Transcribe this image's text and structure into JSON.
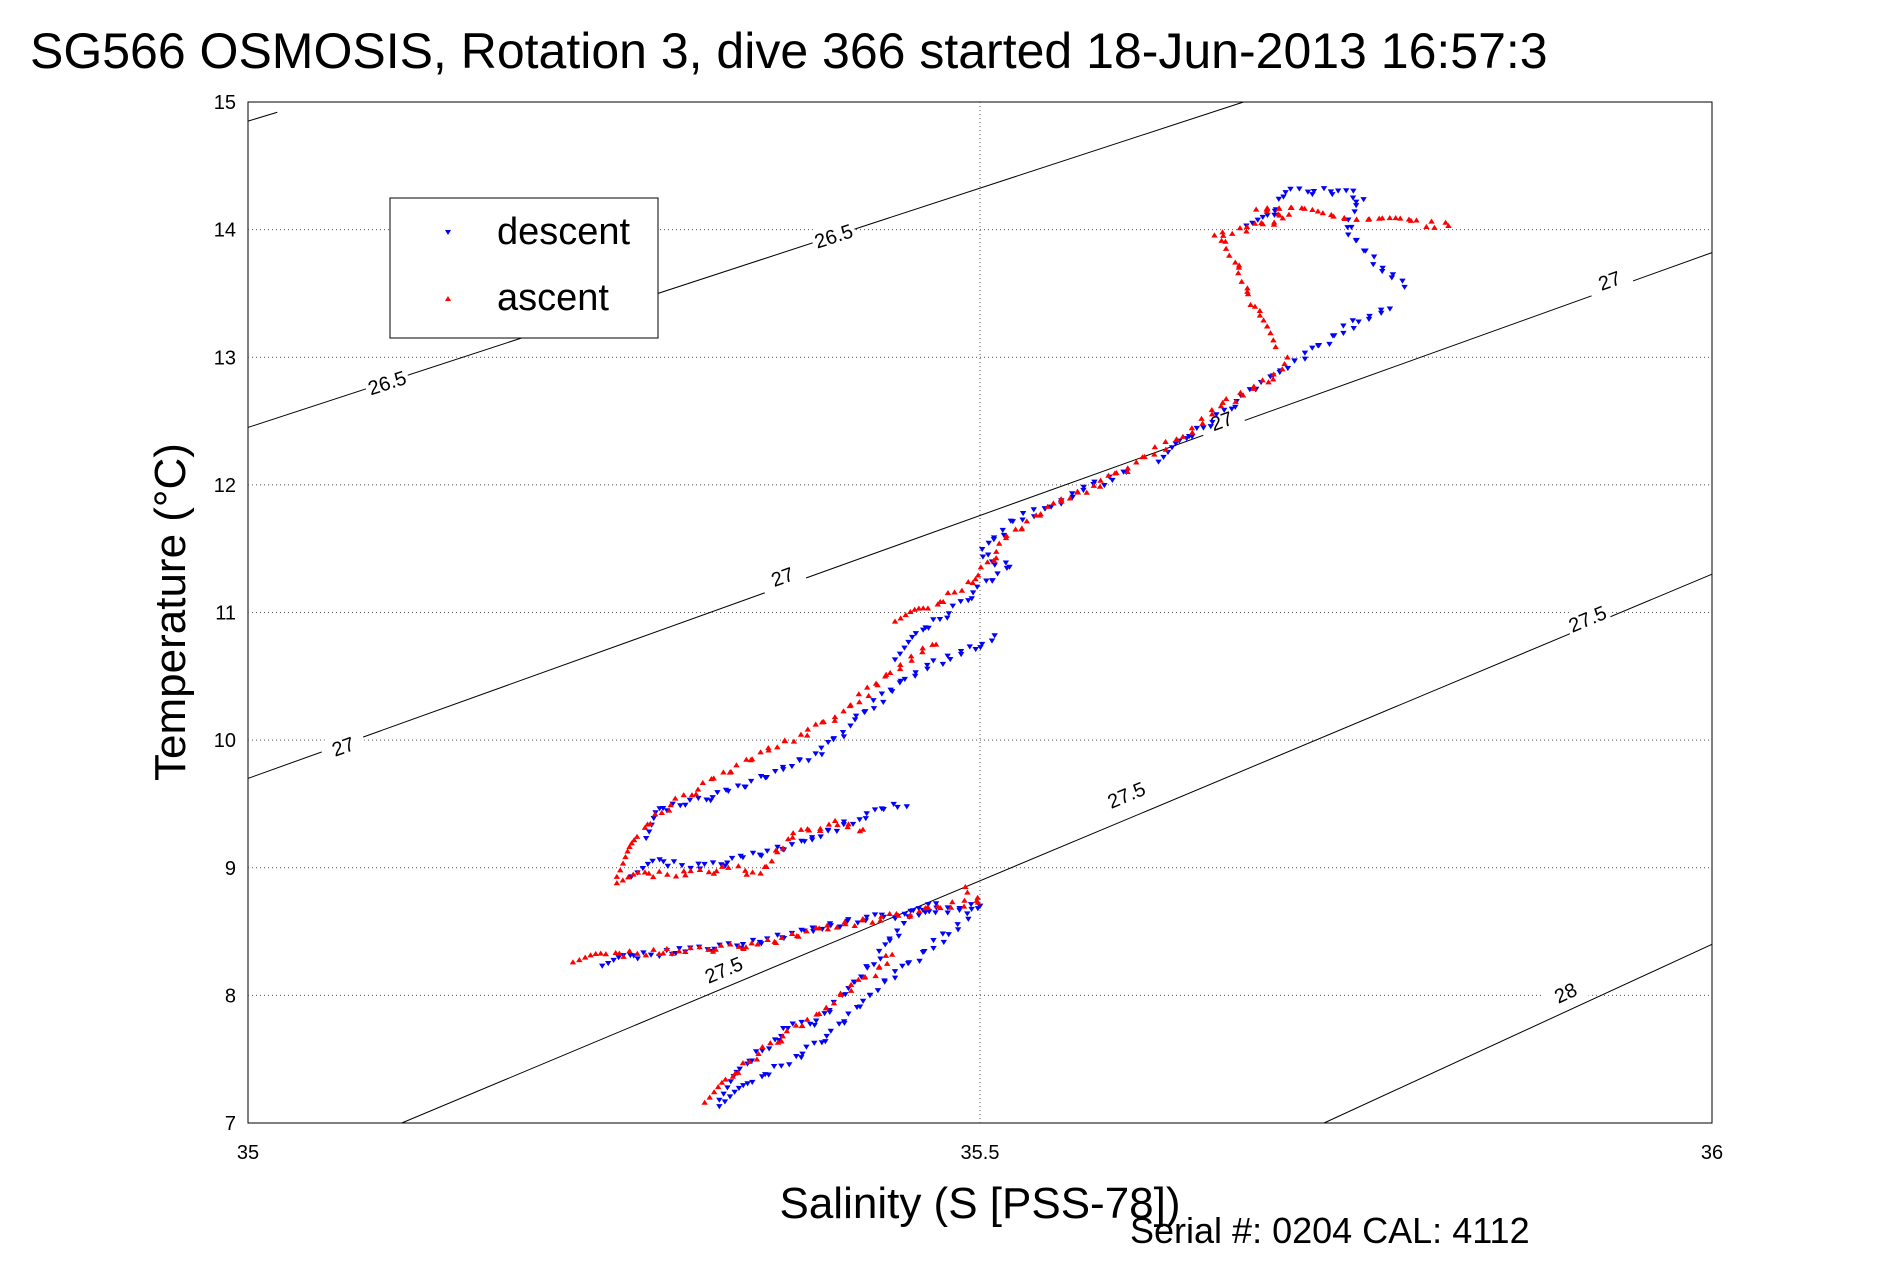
{
  "chart_data": {
    "type": "scatter",
    "title": "SG566 OSMOSIS, Rotation 3, dive 366 started 18-Jun-2013 16:57:3",
    "xlabel": "Salinity (S [PSS-78])",
    "ylabel": "Temperature (°C)",
    "xlim": [
      35,
      36
    ],
    "ylim": [
      7,
      15
    ],
    "xticks": [
      35,
      35.5,
      36
    ],
    "xtick_labels": [
      "35",
      "35.5",
      "36"
    ],
    "yticks": [
      7,
      8,
      9,
      10,
      11,
      12,
      13,
      14,
      15
    ],
    "ytick_labels": [
      "7",
      "8",
      "9",
      "10",
      "11",
      "12",
      "13",
      "14",
      "15"
    ],
    "grid": true,
    "legend_position": "top-left",
    "density_contours": [
      {
        "level": "26.5",
        "line": [
          [
            35,
            12.45
          ],
          [
            35.68,
            15.0
          ]
        ],
        "labels": [
          {
            "x": 35.095,
            "y": 12.8
          },
          {
            "x": 35.4,
            "y": 13.95
          }
        ]
      },
      {
        "level": "26.5",
        "line": [
          [
            35,
            14.85
          ],
          [
            35.02,
            14.92
          ]
        ],
        "labels": []
      },
      {
        "level": "27",
        "line": [
          [
            35,
            9.7
          ],
          [
            36,
            13.82
          ]
        ],
        "labels": [
          {
            "x": 35.065,
            "y": 9.95
          },
          {
            "x": 35.365,
            "y": 11.28
          },
          {
            "x": 35.665,
            "y": 12.5
          },
          {
            "x": 35.93,
            "y": 13.6
          }
        ]
      },
      {
        "level": "27.5",
        "line": [
          [
            35.105,
            7.0
          ],
          [
            36,
            11.3
          ]
        ],
        "labels": [
          {
            "x": 35.325,
            "y": 8.2
          },
          {
            "x": 35.6,
            "y": 9.57
          },
          {
            "x": 35.915,
            "y": 10.95
          }
        ]
      },
      {
        "level": "28",
        "line": [
          [
            35.735,
            7.0
          ],
          [
            36,
            8.4
          ]
        ],
        "labels": [
          {
            "x": 35.9,
            "y": 8.02
          }
        ]
      }
    ],
    "series": [
      {
        "name": "descent",
        "color": "#0000ff",
        "marker": "triangle-down",
        "segments": [
          [
            [
              35.32,
              7.15
            ],
            [
              35.35,
              7.35
            ],
            [
              35.38,
              7.55
            ],
            [
              35.4,
              7.72
            ],
            [
              35.42,
              7.95
            ],
            [
              35.44,
              8.15
            ],
            [
              35.46,
              8.32
            ],
            [
              35.48,
              8.5
            ],
            [
              35.5,
              8.7
            ]
          ],
          [
            [
              35.32,
              7.2
            ],
            [
              35.34,
              7.45
            ],
            [
              35.37,
              7.75
            ],
            [
              35.39,
              7.8
            ],
            [
              35.41,
              8.05
            ],
            [
              35.43,
              8.3
            ],
            [
              35.45,
              8.6
            ],
            [
              35.47,
              8.72
            ]
          ],
          [
            [
              35.24,
              8.25
            ],
            [
              35.26,
              8.3
            ],
            [
              35.3,
              8.35
            ],
            [
              35.34,
              8.4
            ],
            [
              35.38,
              8.5
            ],
            [
              35.42,
              8.6
            ],
            [
              35.46,
              8.65
            ],
            [
              35.5,
              8.7
            ]
          ],
          [
            [
              35.26,
              8.95
            ],
            [
              35.28,
              9.05
            ],
            [
              35.31,
              9.0
            ],
            [
              35.34,
              9.08
            ],
            [
              35.38,
              9.2
            ],
            [
              35.42,
              9.4
            ],
            [
              35.44,
              9.48
            ],
            [
              35.45,
              9.48
            ]
          ],
          [
            [
              35.27,
              9.25
            ],
            [
              35.28,
              9.45
            ],
            [
              35.3,
              9.5
            ],
            [
              35.33,
              9.6
            ],
            [
              35.36,
              9.75
            ],
            [
              35.39,
              9.9
            ],
            [
              35.42,
              10.2
            ],
            [
              35.45,
              10.5
            ],
            [
              35.47,
              10.6
            ],
            [
              35.5,
              10.75
            ],
            [
              35.51,
              10.82
            ]
          ],
          [
            [
              35.44,
              10.65
            ],
            [
              35.46,
              10.85
            ],
            [
              35.48,
              11.0
            ],
            [
              35.5,
              11.2
            ],
            [
              35.52,
              11.35
            ],
            [
              35.5,
              11.45
            ],
            [
              35.52,
              11.7
            ],
            [
              35.55,
              11.85
            ],
            [
              35.58,
              12.0
            ],
            [
              35.6,
              12.1
            ]
          ],
          [
            [
              35.62,
              12.2
            ],
            [
              35.64,
              12.35
            ],
            [
              35.66,
              12.5
            ],
            [
              35.68,
              12.7
            ],
            [
              35.7,
              12.85
            ],
            [
              35.72,
              13.0
            ],
            [
              35.74,
              13.15
            ],
            [
              35.76,
              13.3
            ],
            [
              35.78,
              13.38
            ]
          ],
          [
            [
              35.68,
              14.05
            ],
            [
              35.7,
              14.1
            ],
            [
              35.71,
              14.3
            ],
            [
              35.73,
              14.3
            ],
            [
              35.75,
              14.3
            ],
            [
              35.76,
              14.25
            ],
            [
              35.75,
              14.0
            ],
            [
              35.77,
              13.75
            ],
            [
              35.79,
              13.55
            ]
          ]
        ]
      },
      {
        "name": "ascent",
        "color": "#ff0000",
        "marker": "triangle-up",
        "segments": [
          [
            [
              35.31,
              7.18
            ],
            [
              35.33,
              7.35
            ],
            [
              35.35,
              7.55
            ],
            [
              35.37,
              7.72
            ],
            [
              35.39,
              7.85
            ],
            [
              35.41,
              8.05
            ],
            [
              35.43,
              8.2
            ],
            [
              35.44,
              8.32
            ]
          ],
          [
            [
              35.22,
              8.28
            ],
            [
              35.25,
              8.32
            ],
            [
              35.3,
              8.35
            ],
            [
              35.35,
              8.4
            ],
            [
              35.39,
              8.52
            ],
            [
              35.43,
              8.6
            ],
            [
              35.47,
              8.68
            ],
            [
              35.5,
              8.75
            ],
            [
              35.49,
              8.85
            ]
          ],
          [
            [
              35.25,
              8.9
            ],
            [
              35.27,
              8.95
            ],
            [
              35.3,
              8.95
            ],
            [
              35.33,
              9.0
            ],
            [
              35.35,
              8.95
            ],
            [
              35.37,
              9.25
            ],
            [
              35.4,
              9.35
            ],
            [
              35.42,
              9.3
            ]
          ],
          [
            [
              35.25,
              8.95
            ],
            [
              35.27,
              9.3
            ],
            [
              35.29,
              9.5
            ],
            [
              35.32,
              9.7
            ],
            [
              35.35,
              9.9
            ],
            [
              35.38,
              10.05
            ],
            [
              35.41,
              10.25
            ],
            [
              35.44,
              10.55
            ],
            [
              35.47,
              10.75
            ]
          ],
          [
            [
              35.44,
              10.95
            ],
            [
              35.47,
              11.05
            ],
            [
              35.5,
              11.3
            ],
            [
              35.52,
              11.6
            ],
            [
              35.55,
              11.85
            ],
            [
              35.58,
              12.0
            ],
            [
              35.61,
              12.2
            ],
            [
              35.64,
              12.4
            ],
            [
              35.67,
              12.65
            ],
            [
              35.7,
              12.85
            ],
            [
              35.71,
              13.0
            ]
          ],
          [
            [
              35.7,
              13.1
            ],
            [
              35.69,
              13.35
            ],
            [
              35.68,
              13.6
            ],
            [
              35.67,
              13.85
            ],
            [
              35.66,
              13.95
            ],
            [
              35.68,
              14.0
            ],
            [
              35.71,
              14.1
            ],
            [
              35.69,
              14.18
            ],
            [
              35.8,
              14.05
            ],
            [
              35.82,
              14.03
            ]
          ]
        ]
      }
    ],
    "legend": [
      {
        "label": "descent",
        "color": "#0000ff"
      },
      {
        "label": "ascent",
        "color": "#ff0000"
      }
    ],
    "footer": "Serial #: 0204  CAL: 4112"
  }
}
